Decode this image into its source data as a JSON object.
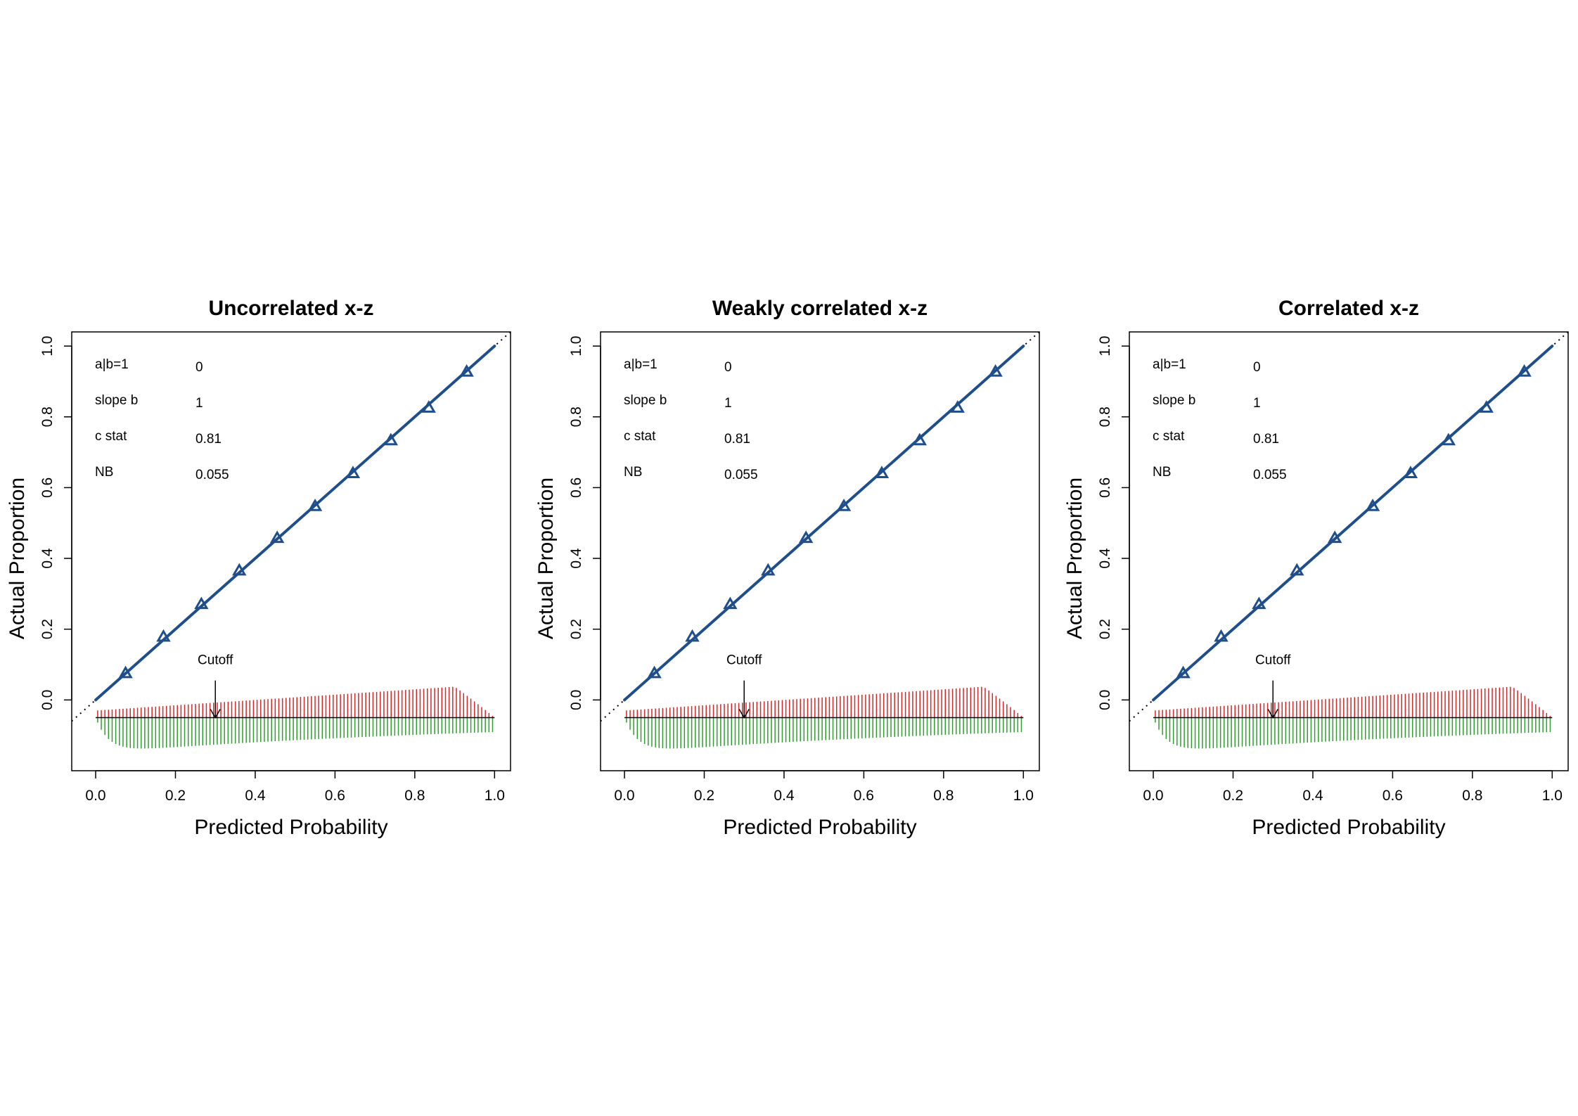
{
  "chart_data": [
    {
      "type": "line",
      "title": "Uncorrelated x-z",
      "xlabel": "Predicted Probability",
      "ylabel": "Actual Proportion",
      "xlim": [
        -0.06,
        1.04
      ],
      "ylim": [
        -0.2,
        1.04
      ],
      "x_ticks": [
        "0.0",
        "0.2",
        "0.4",
        "0.6",
        "0.8",
        "1.0"
      ],
      "y_ticks": [
        "0.0",
        "0.2",
        "0.4",
        "0.6",
        "0.8",
        "1.0"
      ],
      "grid": false,
      "stats": [
        {
          "label": "a|b=1",
          "value": "0"
        },
        {
          "label": "slope b",
          "value": "1"
        },
        {
          "label": "c stat",
          "value": "0.81"
        },
        {
          "label": "NB",
          "value": "0.055"
        }
      ],
      "cutoff": {
        "label": "Cutoff",
        "x": 0.3
      },
      "reference_line": {
        "style": "dotted",
        "points": [
          [
            -0.06,
            -0.06
          ],
          [
            1.04,
            1.04
          ]
        ]
      },
      "calibration_curve": {
        "color": "#1f4e8c",
        "x": [
          0.0,
          1.0
        ],
        "y": [
          0.0,
          1.0
        ]
      },
      "decile_points": {
        "marker": "triangle",
        "x": [
          0.075,
          0.17,
          0.265,
          0.36,
          0.455,
          0.55,
          0.645,
          0.74,
          0.835,
          0.93
        ],
        "y": [
          0.075,
          0.178,
          0.27,
          0.365,
          0.457,
          0.547,
          0.64,
          0.733,
          0.825,
          0.927
        ]
      },
      "spike_histogram": {
        "baseline_y": -0.05,
        "events_color": "#d62728",
        "nonevents_color": "#2ca02c"
      }
    },
    {
      "type": "line",
      "title": "Weakly correlated x-z",
      "xlabel": "Predicted Probability",
      "ylabel": "Actual Proportion",
      "xlim": [
        -0.06,
        1.04
      ],
      "ylim": [
        -0.2,
        1.04
      ],
      "x_ticks": [
        "0.0",
        "0.2",
        "0.4",
        "0.6",
        "0.8",
        "1.0"
      ],
      "y_ticks": [
        "0.0",
        "0.2",
        "0.4",
        "0.6",
        "0.8",
        "1.0"
      ],
      "grid": false,
      "stats": [
        {
          "label": "a|b=1",
          "value": "0"
        },
        {
          "label": "slope b",
          "value": "1"
        },
        {
          "label": "c stat",
          "value": "0.81"
        },
        {
          "label": "NB",
          "value": "0.055"
        }
      ],
      "cutoff": {
        "label": "Cutoff",
        "x": 0.3
      },
      "reference_line": {
        "style": "dotted",
        "points": [
          [
            -0.06,
            -0.06
          ],
          [
            1.04,
            1.04
          ]
        ]
      },
      "calibration_curve": {
        "color": "#1f4e8c",
        "x": [
          0.0,
          1.0
        ],
        "y": [
          0.0,
          1.0
        ]
      },
      "decile_points": {
        "marker": "triangle",
        "x": [
          0.075,
          0.17,
          0.265,
          0.36,
          0.455,
          0.55,
          0.645,
          0.74,
          0.835,
          0.93
        ],
        "y": [
          0.075,
          0.178,
          0.27,
          0.365,
          0.457,
          0.547,
          0.64,
          0.733,
          0.825,
          0.927
        ]
      },
      "spike_histogram": {
        "baseline_y": -0.05,
        "events_color": "#d62728",
        "nonevents_color": "#2ca02c"
      }
    },
    {
      "type": "line",
      "title": "Correlated x-z",
      "xlabel": "Predicted Probability",
      "ylabel": "Actual Proportion",
      "xlim": [
        -0.06,
        1.04
      ],
      "ylim": [
        -0.2,
        1.04
      ],
      "x_ticks": [
        "0.0",
        "0.2",
        "0.4",
        "0.6",
        "0.8",
        "1.0"
      ],
      "y_ticks": [
        "0.0",
        "0.2",
        "0.4",
        "0.6",
        "0.8",
        "1.0"
      ],
      "grid": false,
      "stats": [
        {
          "label": "a|b=1",
          "value": "0"
        },
        {
          "label": "slope b",
          "value": "1"
        },
        {
          "label": "c stat",
          "value": "0.81"
        },
        {
          "label": "NB",
          "value": "0.055"
        }
      ],
      "cutoff": {
        "label": "Cutoff",
        "x": 0.3
      },
      "reference_line": {
        "style": "dotted",
        "points": [
          [
            -0.06,
            -0.06
          ],
          [
            1.04,
            1.04
          ]
        ]
      },
      "calibration_curve": {
        "color": "#1f4e8c",
        "x": [
          0.0,
          1.0
        ],
        "y": [
          0.0,
          1.0
        ]
      },
      "decile_points": {
        "marker": "triangle",
        "x": [
          0.075,
          0.17,
          0.265,
          0.36,
          0.455,
          0.55,
          0.645,
          0.74,
          0.835,
          0.93
        ],
        "y": [
          0.075,
          0.178,
          0.27,
          0.365,
          0.457,
          0.547,
          0.64,
          0.733,
          0.825,
          0.927
        ]
      },
      "spike_histogram": {
        "baseline_y": -0.05,
        "events_color": "#d62728",
        "nonevents_color": "#2ca02c"
      }
    }
  ]
}
